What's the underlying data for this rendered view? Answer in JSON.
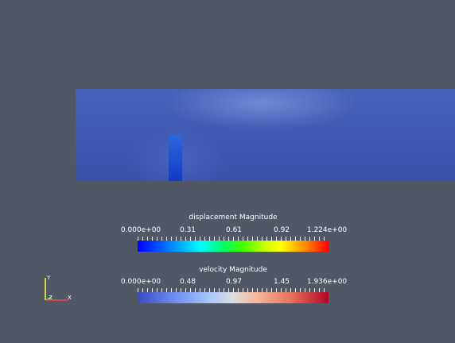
{
  "colors": {
    "background": "#525766",
    "domain": "#4262b5",
    "flap": "#1e4fd0"
  },
  "legends": {
    "displacement": {
      "title": "displacement Magnitude",
      "ticks": [
        "0.000e+00",
        "0.31",
        "0.61",
        "0.92",
        "1.224e+00"
      ],
      "range": [
        0.0,
        1.224
      ],
      "colormap": "rainbow"
    },
    "velocity": {
      "title": "velocity Magnitude",
      "ticks": [
        "0.000e+00",
        "0.48",
        "0.97",
        "1.45",
        "1.936e+00"
      ],
      "range": [
        0.0,
        1.936
      ],
      "colormap": "cool-to-warm"
    }
  },
  "orientation_axes": {
    "y_label": "Y",
    "z_label": "Z",
    "x_label": "X"
  }
}
